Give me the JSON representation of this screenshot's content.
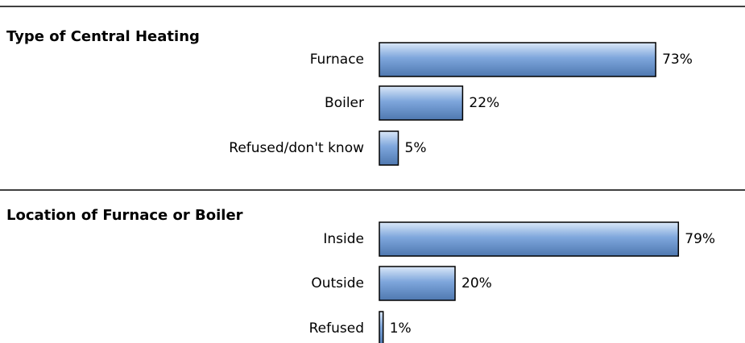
{
  "chart_data": [
    {
      "type": "bar",
      "orientation": "horizontal",
      "title": "Type of Central Heating",
      "categories": [
        "Furnace",
        "Boiler",
        "Refused/don't know"
      ],
      "values": [
        73,
        22,
        5
      ],
      "value_labels": [
        "73%",
        "22%",
        "5%"
      ],
      "color": "#7ea6dc"
    },
    {
      "type": "bar",
      "orientation": "horizontal",
      "title": "Location of Furnace or Boiler",
      "categories": [
        "Inside",
        "Outside",
        "Refused"
      ],
      "values": [
        79,
        20,
        1
      ],
      "value_labels": [
        "79%",
        "20%",
        "1%"
      ],
      "color": "#7ea6dc"
    }
  ]
}
